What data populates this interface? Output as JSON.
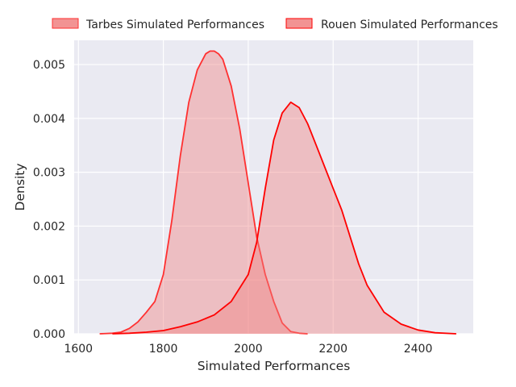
{
  "chart_data": {
    "type": "area",
    "title": "",
    "xlabel": "Simulated Performances",
    "ylabel": "Density",
    "xlim": [
      1590,
      2530
    ],
    "ylim": [
      0,
      0.00545
    ],
    "xticks": [
      1600,
      1800,
      2000,
      2200,
      2400
    ],
    "xtick_labels": [
      "1600",
      "1800",
      "2000",
      "2200",
      "2400"
    ],
    "yticks": [
      0,
      0.001,
      0.002,
      0.003,
      0.004,
      0.005
    ],
    "ytick_labels": [
      "0.000",
      "0.001",
      "0.002",
      "0.003",
      "0.004",
      "0.005"
    ],
    "grid": true,
    "legend_position": "top-center",
    "background": "#eaeaf2",
    "series": [
      {
        "name": "Tarbes Simulated Performances",
        "line_color": "#ff3030",
        "fill_color": "#f08080",
        "x": [
          1650,
          1680,
          1700,
          1720,
          1740,
          1760,
          1780,
          1800,
          1820,
          1840,
          1860,
          1880,
          1900,
          1910,
          1920,
          1930,
          1940,
          1960,
          1980,
          2000,
          2020,
          2040,
          2060,
          2080,
          2100,
          2120,
          2140
        ],
        "y": [
          0.0,
          1e-05,
          3e-05,
          0.0001,
          0.00022,
          0.0004,
          0.0006,
          0.0011,
          0.0021,
          0.0033,
          0.0043,
          0.0049,
          0.0052,
          0.00525,
          0.00525,
          0.0052,
          0.0051,
          0.0046,
          0.0038,
          0.0028,
          0.0018,
          0.0011,
          0.0006,
          0.0002,
          4e-05,
          1e-05,
          0.0
        ]
      },
      {
        "name": "Rouen Simulated Performances",
        "line_color": "#ff0000",
        "fill_color": "#f08080",
        "x": [
          1680,
          1720,
          1760,
          1800,
          1840,
          1880,
          1920,
          1960,
          2000,
          2020,
          2040,
          2060,
          2080,
          2100,
          2120,
          2140,
          2160,
          2180,
          2200,
          2220,
          2240,
          2260,
          2280,
          2320,
          2360,
          2400,
          2440,
          2490
        ],
        "y": [
          0.0,
          1e-05,
          3e-05,
          6e-05,
          0.00013,
          0.00022,
          0.00035,
          0.0006,
          0.0011,
          0.0017,
          0.0027,
          0.0036,
          0.0041,
          0.0043,
          0.0042,
          0.0039,
          0.0035,
          0.0031,
          0.0027,
          0.0023,
          0.0018,
          0.0013,
          0.0009,
          0.0004,
          0.00018,
          7e-05,
          2e-05,
          0.0
        ]
      }
    ]
  }
}
